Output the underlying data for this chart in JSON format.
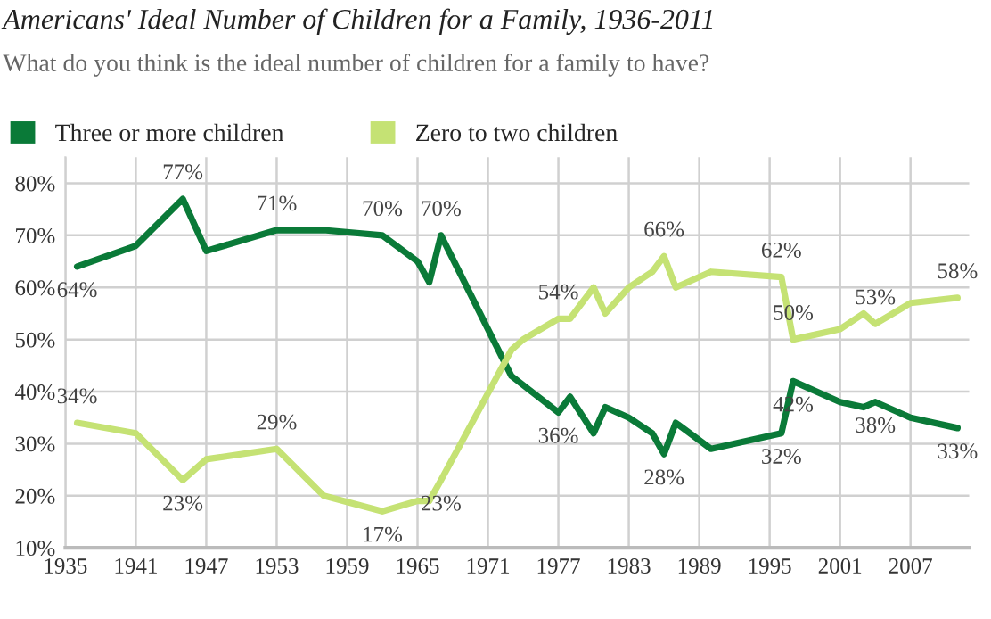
{
  "chart_data": {
    "type": "line",
    "title": "Americans' Ideal Number of Children for a Family, 1936-2011",
    "subtitle": "What do you think is the ideal number of children for a family to have?",
    "legend": "top left",
    "grid": true,
    "marker": "none",
    "line_style": "solid",
    "xlim": [
      1935,
      2012
    ],
    "xticks": [
      1935,
      1941,
      1947,
      1953,
      1959,
      1965,
      1971,
      1977,
      1983,
      1989,
      1995,
      2001,
      2007
    ],
    "ylim": [
      10,
      85
    ],
    "yticks": [
      {
        "value": 10,
        "label": "10%"
      },
      {
        "value": 20,
        "label": "20%"
      },
      {
        "value": 30,
        "label": "30%"
      },
      {
        "value": 40,
        "label": "40%"
      },
      {
        "value": 50,
        "label": "50%"
      },
      {
        "value": 60,
        "label": "60%"
      },
      {
        "value": 70,
        "label": "70%"
      },
      {
        "value": 80,
        "label": "80%"
      }
    ],
    "series": [
      {
        "name": "Three or more children",
        "color": "#0a7a38",
        "x": [
          1936,
          1941,
          1945,
          1947,
          1953,
          1957,
          1962,
          1965,
          1966,
          1967,
          1973,
          1977,
          1978,
          1980,
          1981,
          1983,
          1985,
          1986,
          1987,
          1990,
          1996,
          1997,
          2001,
          2003,
          2004,
          2007,
          2011
        ],
        "values": [
          64,
          68,
          77,
          67,
          71,
          71,
          70,
          65,
          61,
          70,
          43,
          36,
          39,
          32,
          37,
          35,
          32,
          28,
          34,
          29,
          32,
          42,
          38,
          37,
          38,
          35,
          33
        ],
        "value_labels": [
          "64%",
          null,
          "77%",
          null,
          "71%",
          null,
          "70%",
          null,
          null,
          "70%",
          null,
          "36%",
          null,
          null,
          null,
          null,
          null,
          "28%",
          null,
          null,
          "32%",
          "42%",
          null,
          null,
          "38%",
          null,
          "33%"
        ]
      },
      {
        "name": "Zero to two children",
        "color": "#c5e274",
        "x": [
          1936,
          1941,
          1945,
          1947,
          1953,
          1957,
          1962,
          1965,
          1966,
          1967,
          1973,
          1974,
          1977,
          1978,
          1980,
          1981,
          1983,
          1985,
          1986,
          1987,
          1990,
          1996,
          1997,
          2001,
          2003,
          2004,
          2007,
          2011
        ],
        "values": [
          34,
          32,
          23,
          27,
          29,
          20,
          17,
          19,
          19,
          23,
          48,
          50,
          54,
          54,
          60,
          55,
          60,
          63,
          66,
          60,
          63,
          62,
          50,
          52,
          55,
          53,
          57,
          58
        ],
        "value_labels": [
          "34%",
          null,
          "23%",
          null,
          "29%",
          null,
          "17%",
          null,
          null,
          "23%",
          null,
          null,
          "54%",
          null,
          null,
          null,
          null,
          null,
          "66%",
          null,
          null,
          "62%",
          "50%",
          null,
          null,
          "53%",
          null,
          "58%"
        ]
      }
    ]
  }
}
